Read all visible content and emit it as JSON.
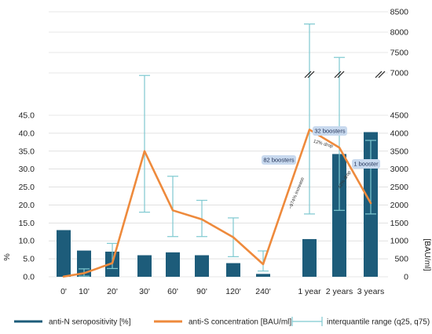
{
  "chart_data": {
    "type": "bar",
    "categories": [
      "0'",
      "10'",
      "20'",
      "30'",
      "60'",
      "90'",
      "120'",
      "240'",
      "1 year",
      "2 years",
      "3 years"
    ],
    "series": [
      {
        "name": "anti-N seropositivity [%]",
        "kind": "bar",
        "axis": "left",
        "values": [
          13.0,
          7.3,
          7.0,
          6.0,
          6.8,
          6.0,
          3.8,
          0.8,
          10.5,
          34.2,
          40.3
        ]
      },
      {
        "name": "anti-S concentration [BAU/ml]",
        "kind": "line",
        "axis": "right",
        "values": [
          5,
          100,
          380,
          3500,
          1850,
          1600,
          1100,
          350,
          4100,
          3600,
          2050
        ]
      },
      {
        "name": "interquantile range (q25, q75)",
        "kind": "errorbar",
        "axis": "right",
        "lower": [
          null,
          20,
          230,
          1800,
          1120,
          1120,
          560,
          160,
          1750,
          1850,
          1750
        ],
        "upper": [
          null,
          220,
          930,
          6850,
          2800,
          2130,
          1640,
          720,
          8200,
          7380,
          3800
        ]
      }
    ],
    "left_axis": {
      "label": "%",
      "ylim": [
        0,
        45
      ],
      "ticks": [
        "0.0",
        "5.0",
        "10.0",
        "15.0",
        "20.0",
        "25.0",
        "30.0",
        "35.0",
        "40.0",
        "45.0"
      ]
    },
    "right_axis": {
      "label": "[BAU/ml]",
      "broken": true,
      "lower_range": [
        0,
        4500
      ],
      "upper_range": [
        7000,
        8500
      ],
      "ticks_lower": [
        "0",
        "500",
        "1000",
        "1500",
        "2000",
        "2500",
        "3000",
        "3500",
        "4000",
        "4500"
      ],
      "ticks_upper": [
        "7000",
        "7500",
        "8000",
        "8500"
      ]
    },
    "annotations": [
      {
        "text": "82 boosters",
        "category": "240'"
      },
      {
        "text": "32 boosters",
        "category": "1 year"
      },
      {
        "text": "1 booster",
        "category": "3 years"
      },
      {
        "text": "~974% increase",
        "category": "240'"
      },
      {
        "text": "12% drop",
        "category": "1 year"
      },
      {
        "text": "42% drop",
        "category": "2 years"
      }
    ],
    "colors": {
      "bar": "#1d5c7a",
      "line": "#ee8a3c",
      "errorbar": "#7ec9d0",
      "annotation_box": "#c8d9ee",
      "gridline": "#cfcfcf"
    },
    "legend_position": "bottom",
    "grid": true
  }
}
